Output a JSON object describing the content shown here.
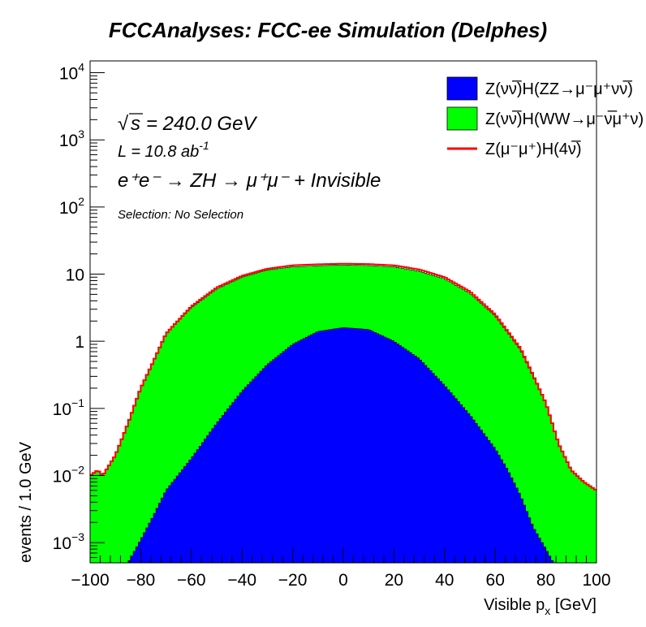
{
  "chart_data": {
    "type": "area",
    "title": "FCCAnalyses: FCC-ee Simulation (Delphes)",
    "xlabel": "Visible p_x [GeV]",
    "ylabel": "events / 1.0 GeV",
    "xlim": [
      -100,
      100
    ],
    "ylim": [
      0.0005,
      15000
    ],
    "yscale": "log",
    "stacked": true,
    "x_ticks": [
      "−100",
      "−80",
      "−60",
      "−40",
      "−20",
      "0",
      "20",
      "40",
      "60",
      "80",
      "100"
    ],
    "y_ticks": [
      {
        "value": 0.001,
        "base": "10",
        "exp": "−3"
      },
      {
        "value": 0.01,
        "base": "10",
        "exp": "−2"
      },
      {
        "value": 0.1,
        "base": "10",
        "exp": "−1"
      },
      {
        "value": 1,
        "base": "1",
        "exp": ""
      },
      {
        "value": 10,
        "base": "10",
        "exp": ""
      },
      {
        "value": 100,
        "base": "10",
        "exp": "2"
      },
      {
        "value": 1000,
        "base": "10",
        "exp": "3"
      },
      {
        "value": 10000,
        "base": "10",
        "exp": "4"
      }
    ],
    "annotations": {
      "sqrt_s": "= 240.0 GeV",
      "lumi": "L = 10.8 ab",
      "lumi_exp": "-1",
      "process": "e⁺e⁻ → ZH → μ⁺μ⁻ + Invisible",
      "selection": "Selection: No Selection"
    },
    "legend_position": "top-right",
    "series": [
      {
        "name": "Z(νν̅)H(ZZ→μ⁻μ⁺νν̅)",
        "color": "#0000ff",
        "style": "filled",
        "points": [
          [
            -85,
            0.0005
          ],
          [
            -80,
            0.0011
          ],
          [
            -75,
            0.0025
          ],
          [
            -70,
            0.006
          ],
          [
            -60,
            0.018
          ],
          [
            -50,
            0.06
          ],
          [
            -40,
            0.18
          ],
          [
            -30,
            0.45
          ],
          [
            -20,
            0.9
          ],
          [
            -10,
            1.4
          ],
          [
            0,
            1.6
          ],
          [
            10,
            1.5
          ],
          [
            20,
            1.0
          ],
          [
            30,
            0.55
          ],
          [
            40,
            0.22
          ],
          [
            50,
            0.08
          ],
          [
            60,
            0.025
          ],
          [
            65,
            0.012
          ],
          [
            70,
            0.005
          ],
          [
            75,
            0.0017
          ],
          [
            80,
            0.0008
          ],
          [
            83,
            0.0005
          ]
        ]
      },
      {
        "name": "Z(νν̅)H(WW→μ⁻ν̅μ⁺ν)",
        "color": "#00ff00",
        "style": "filled",
        "points": [
          [
            -100,
            0.01
          ],
          [
            -97,
            0.012
          ],
          [
            -95,
            0.01
          ],
          [
            -90,
            0.02
          ],
          [
            -85,
            0.06
          ],
          [
            -80,
            0.2
          ],
          [
            -75,
            0.5
          ],
          [
            -70,
            1.3
          ],
          [
            -60,
            3.2
          ],
          [
            -50,
            6.0
          ],
          [
            -40,
            9.0
          ],
          [
            -30,
            11.5
          ],
          [
            -20,
            12.8
          ],
          [
            -10,
            13.3
          ],
          [
            0,
            13.7
          ],
          [
            10,
            13.4
          ],
          [
            20,
            12.8
          ],
          [
            30,
            11.0
          ],
          [
            40,
            8.5
          ],
          [
            50,
            5.2
          ],
          [
            60,
            2.4
          ],
          [
            70,
            0.75
          ],
          [
            75,
            0.3
          ],
          [
            80,
            0.12
          ],
          [
            85,
            0.03
          ],
          [
            90,
            0.012
          ],
          [
            95,
            0.008
          ],
          [
            100,
            0.006
          ]
        ]
      },
      {
        "name": "Z(μ⁻μ⁺)H(4ν̅)",
        "color": "#ff0000",
        "style": "line",
        "points": [
          [
            -100,
            0.01
          ],
          [
            -97,
            0.012
          ],
          [
            -95,
            0.01
          ],
          [
            -90,
            0.02
          ],
          [
            -85,
            0.06
          ],
          [
            -80,
            0.2
          ],
          [
            -75,
            0.5
          ],
          [
            -70,
            1.3
          ],
          [
            -60,
            3.3
          ],
          [
            -50,
            6.3
          ],
          [
            -40,
            9.4
          ],
          [
            -30,
            12.0
          ],
          [
            -20,
            13.5
          ],
          [
            -10,
            14.0
          ],
          [
            0,
            14.3
          ],
          [
            10,
            14.1
          ],
          [
            20,
            13.5
          ],
          [
            30,
            11.7
          ],
          [
            40,
            9.0
          ],
          [
            50,
            5.5
          ],
          [
            60,
            2.5
          ],
          [
            70,
            0.78
          ],
          [
            75,
            0.31
          ],
          [
            80,
            0.12
          ],
          [
            85,
            0.03
          ],
          [
            90,
            0.012
          ],
          [
            95,
            0.008
          ],
          [
            100,
            0.006
          ]
        ]
      }
    ]
  }
}
